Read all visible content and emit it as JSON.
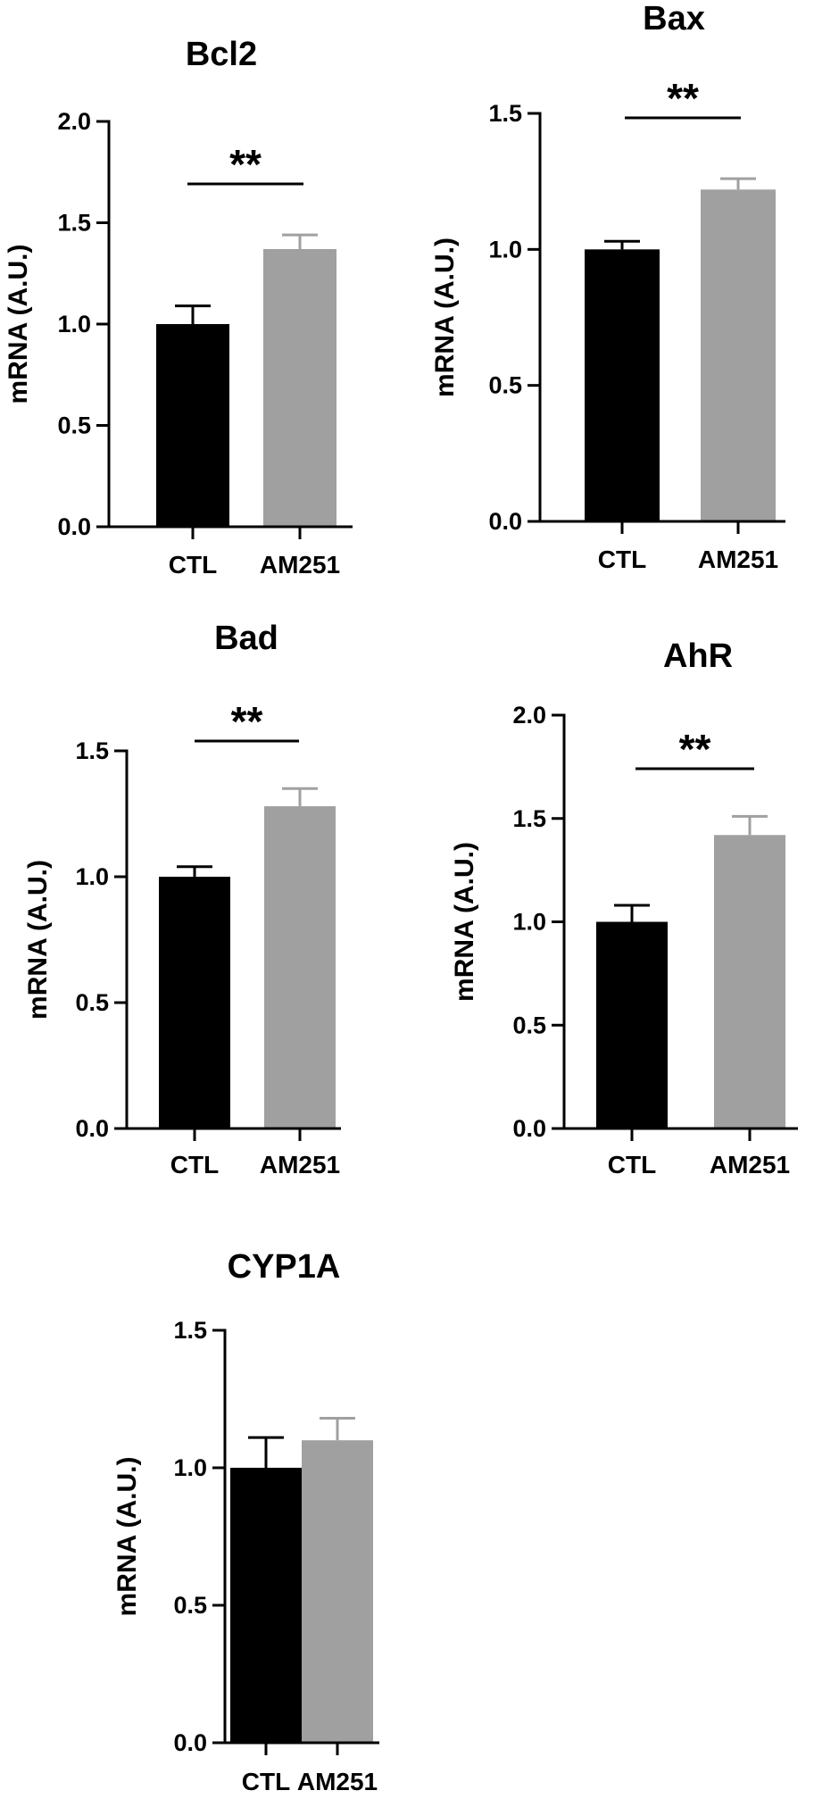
{
  "chart_data": [
    {
      "type": "bar",
      "title": "Bcl2",
      "ylabel": "mRNA (A.U.)",
      "categories": [
        "CTL",
        "AM251"
      ],
      "values": [
        1.0,
        1.37
      ],
      "errors": [
        0.09,
        0.07
      ],
      "bar_colors": [
        "#000000",
        "#a0a0a0"
      ],
      "ylim": [
        0,
        2.0
      ],
      "yticks": [
        "0.0",
        "0.5",
        "1.0",
        "1.5",
        "2.0"
      ],
      "significance": "**"
    },
    {
      "type": "bar",
      "title": "Bax",
      "ylabel": "mRNA (A.U.)",
      "categories": [
        "CTL",
        "AM251"
      ],
      "values": [
        1.0,
        1.22
      ],
      "errors": [
        0.03,
        0.04
      ],
      "bar_colors": [
        "#000000",
        "#a0a0a0"
      ],
      "ylim": [
        0,
        1.5
      ],
      "yticks": [
        "0.0",
        "0.5",
        "1.0",
        "1.5"
      ],
      "significance": "**"
    },
    {
      "type": "bar",
      "title": "Bad",
      "ylabel": "mRNA (A.U.)",
      "categories": [
        "CTL",
        "AM251"
      ],
      "values": [
        1.0,
        1.28
      ],
      "errors": [
        0.04,
        0.07
      ],
      "bar_colors": [
        "#000000",
        "#a0a0a0"
      ],
      "ylim": [
        0,
        1.5
      ],
      "yticks": [
        "0.0",
        "0.5",
        "1.0",
        "1.5"
      ],
      "significance": "**"
    },
    {
      "type": "bar",
      "title": "AhR",
      "ylabel": "mRNA (A.U.)",
      "categories": [
        "CTL",
        "AM251"
      ],
      "values": [
        1.0,
        1.42
      ],
      "errors": [
        0.08,
        0.09
      ],
      "bar_colors": [
        "#000000",
        "#a0a0a0"
      ],
      "ylim": [
        0,
        2.0
      ],
      "yticks": [
        "0.0",
        "0.5",
        "1.0",
        "1.5",
        "2.0"
      ],
      "significance": "**"
    },
    {
      "type": "bar",
      "title": "CYP1A",
      "ylabel": "mRNA (A.U.)",
      "categories": [
        "CTL",
        "AM251"
      ],
      "values": [
        1.0,
        1.1
      ],
      "errors": [
        0.11,
        0.08
      ],
      "bar_colors": [
        "#000000",
        "#a0a0a0"
      ],
      "ylim": [
        0,
        1.5
      ],
      "yticks": [
        "0.0",
        "0.5",
        "1.0",
        "1.5"
      ],
      "significance": ""
    }
  ]
}
